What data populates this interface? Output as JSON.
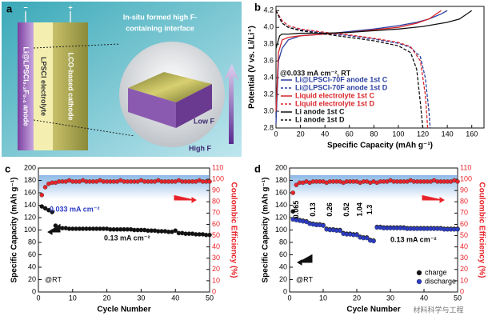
{
  "schematic": {
    "panel": "a",
    "minus": "−",
    "plus": "+",
    "anode": "Li@LPSCl₀.₃F₀.₄ anode",
    "electrolyte": "LPSCl electrolyte",
    "cathode": "LCO-based cathode",
    "interface": [
      "In-situ formed high F-",
      "containing interface"
    ],
    "low": "Low F",
    "high": "High F"
  },
  "watermark": "材料科学与工程",
  "chart_data": [
    {
      "type": "line",
      "panel": "b",
      "xlabel": "Specific Capacity (mAh g⁻¹)",
      "ylabel": "Potential (V vs. Li/Li⁺)",
      "annotations": [
        "@0.033 mA cm⁻², RT"
      ],
      "xlim": [
        0,
        170
      ],
      "xticks": [
        0,
        20,
        40,
        60,
        80,
        100,
        120,
        140,
        160
      ],
      "ylim": [
        2.8,
        4.25
      ],
      "yticks": [
        2.8,
        {
          "value": 3,
          "label": "3.0"
        },
        3.2,
        3.4,
        3.6,
        3.8,
        {
          "value": 4,
          "label": "4.0"
        },
        4.2
      ],
      "legend": "lower left",
      "series": [
        {
          "name": "Li@LPSCl-70F anode 1st C",
          "color": "#2a3fa0",
          "linestyle": "solid",
          "x": [
            0,
            2,
            5,
            10,
            20,
            40,
            60,
            80,
            100,
            115,
            125,
            135,
            140
          ],
          "values": [
            2.85,
            3.6,
            3.75,
            3.85,
            3.9,
            3.92,
            3.95,
            3.98,
            4.02,
            4.06,
            4.1,
            4.16,
            4.2
          ]
        },
        {
          "name": "Li@LPSCl-70F anode 1st D",
          "color": "#2a3fa0",
          "linestyle": "dashed",
          "x": [
            0,
            5,
            10,
            20,
            40,
            60,
            80,
            100,
            110,
            118,
            122,
            125,
            126
          ],
          "values": [
            4.2,
            4.05,
            4.0,
            3.97,
            3.93,
            3.9,
            3.86,
            3.81,
            3.76,
            3.65,
            3.4,
            3.0,
            2.8
          ]
        },
        {
          "name": "Liquid electrolyte 1st C",
          "color": "#d9262b",
          "linestyle": "solid",
          "x": [
            0,
            2,
            5,
            10,
            20,
            40,
            60,
            80,
            100,
            115,
            125,
            130,
            135
          ],
          "values": [
            3.0,
            3.7,
            3.85,
            3.88,
            3.9,
            3.92,
            3.94,
            3.97,
            4.0,
            4.05,
            4.1,
            4.15,
            4.2
          ]
        },
        {
          "name": "Liquid electrolyte 1st D",
          "color": "#d9262b",
          "linestyle": "dashed",
          "x": [
            0,
            5,
            10,
            20,
            40,
            60,
            80,
            100,
            110,
            118,
            122,
            124
          ],
          "values": [
            4.2,
            4.08,
            4.02,
            3.98,
            3.94,
            3.91,
            3.87,
            3.82,
            3.77,
            3.6,
            3.2,
            2.8
          ]
        },
        {
          "name": "Li anode 1st C",
          "color": "#111111",
          "linestyle": "solid",
          "x": [
            0,
            3,
            5,
            10,
            20,
            40,
            60,
            80,
            100,
            120,
            140,
            150,
            155,
            160
          ],
          "values": [
            3.75,
            3.9,
            3.92,
            3.92,
            3.93,
            3.93,
            3.94,
            3.96,
            3.98,
            4.01,
            4.06,
            4.1,
            4.15,
            4.2
          ]
        },
        {
          "name": "Li anode 1st D",
          "color": "#111111",
          "linestyle": "dashed",
          "x": [
            0,
            5,
            10,
            20,
            40,
            60,
            80,
            100,
            110,
            115,
            118,
            120
          ],
          "values": [
            4.2,
            4.05,
            4.0,
            3.96,
            3.92,
            3.88,
            3.84,
            3.78,
            3.7,
            3.5,
            3.1,
            2.8
          ]
        }
      ]
    },
    {
      "type": "scatter",
      "panel": "c",
      "xlabel": "Cycle Number",
      "ylabel": "Specific Capacity (mAh g⁻¹)",
      "y2label": "Coulombic Efficiency (%)",
      "annotations": [
        "0.033 mA cm⁻²",
        "0.13 mA cm⁻²",
        "@RT"
      ],
      "xlim": [
        0,
        50
      ],
      "xticks": [
        0,
        10,
        20,
        30,
        40,
        50
      ],
      "ylim": [
        0,
        200
      ],
      "yticks": [
        0,
        20,
        40,
        60,
        80,
        100,
        120,
        140,
        160,
        180,
        200
      ],
      "y2lim": [
        0,
        110
      ],
      "y2ticks": [
        0,
        10,
        20,
        30,
        40,
        50,
        60,
        70,
        80,
        90,
        100,
        110
      ],
      "x": [
        1,
        2,
        3,
        4,
        5,
        6,
        7,
        8,
        9,
        10,
        11,
        12,
        13,
        14,
        15,
        16,
        17,
        18,
        19,
        20,
        21,
        22,
        23,
        24,
        25,
        26,
        27,
        28,
        29,
        30,
        31,
        32,
        33,
        34,
        35,
        36,
        37,
        38,
        39,
        40,
        41,
        42,
        43,
        44,
        45,
        46,
        47,
        48,
        49,
        50
      ],
      "series": [
        {
          "color": "#111111",
          "values": [
            138,
            135,
            132,
            129,
            107,
            104,
            103,
            103,
            102,
            102,
            102,
            102,
            102,
            102,
            102,
            102,
            102,
            102,
            102,
            102,
            101,
            101,
            101,
            101,
            101,
            101,
            101,
            100,
            100,
            100,
            100,
            99,
            99,
            99,
            98,
            98,
            98,
            97,
            97,
            99,
            95,
            95,
            94,
            94,
            94,
            93,
            93,
            93,
            92,
            92
          ]
        },
        {
          "color": "#e8242b",
          "axis": "y2",
          "values": [
            86,
            93,
            96,
            97,
            97,
            98,
            98,
            98,
            99,
            98,
            98,
            98,
            99,
            98,
            98,
            98,
            98,
            99,
            98,
            98,
            98,
            98,
            98,
            99,
            98,
            98,
            98,
            98,
            98,
            99,
            98,
            98,
            98,
            98,
            99,
            98,
            98,
            98,
            98,
            98,
            99,
            98,
            98,
            98,
            98,
            98,
            99,
            98,
            98,
            98
          ]
        }
      ]
    },
    {
      "type": "scatter",
      "panel": "d",
      "xlabel": "Cycle Number",
      "ylabel": "Specific Capacity (mAh g⁻¹)",
      "y2label": "Coulombic Efficiency (%)",
      "annotations": [
        "0.065",
        "0.13",
        "0.26",
        "0.52",
        "1.04",
        "1.3",
        "0.13 mA cm⁻²",
        "@RT"
      ],
      "xlim": [
        0,
        50
      ],
      "xticks": [
        0,
        10,
        20,
        30,
        40,
        50
      ],
      "ylim": [
        0,
        200
      ],
      "yticks": [
        0,
        20,
        40,
        60,
        80,
        100,
        120,
        140,
        160,
        180,
        200
      ],
      "y2lim": [
        0,
        110
      ],
      "y2ticks": [
        0,
        10,
        20,
        30,
        40,
        50,
        60,
        70,
        80,
        90,
        100,
        110
      ],
      "legend": "lower right",
      "x": [
        1,
        2,
        3,
        4,
        5,
        6,
        7,
        8,
        9,
        10,
        11,
        12,
        13,
        14,
        15,
        16,
        17,
        18,
        19,
        20,
        21,
        22,
        23,
        24,
        25,
        26,
        27,
        28,
        29,
        30,
        31,
        32,
        33,
        34,
        35,
        36,
        37,
        38,
        39,
        40,
        41,
        42,
        43,
        44,
        45,
        46,
        47,
        48,
        49,
        50
      ],
      "series": [
        {
          "name": "charge",
          "color": "#111111",
          "values": [
            130,
            118,
            116,
            115,
            114,
            111,
            110,
            109,
            109,
            108,
            102,
            101,
            101,
            100,
            100,
            95,
            94,
            94,
            93,
            93,
            89,
            88,
            88,
            84,
            83,
            105,
            105,
            104,
            104,
            104,
            104,
            104,
            104,
            104,
            103,
            103,
            103,
            103,
            103,
            103,
            103,
            103,
            103,
            103,
            103,
            102,
            102,
            102,
            102,
            102
          ]
        },
        {
          "name": "discharge",
          "color": "#2b3bc4",
          "values": [
            117,
            116,
            115,
            114,
            113,
            110,
            109,
            108,
            108,
            107,
            101,
            100,
            100,
            99,
            99,
            94,
            93,
            93,
            92,
            92,
            88,
            87,
            87,
            83,
            82,
            104,
            104,
            103,
            103,
            103,
            103,
            103,
            103,
            103,
            102,
            102,
            102,
            102,
            102,
            102,
            102,
            102,
            102,
            102,
            102,
            101,
            101,
            101,
            101,
            101
          ]
        },
        {
          "color": "#e8242b",
          "axis": "y2",
          "values": [
            88,
            95,
            97,
            97,
            98,
            97,
            98,
            98,
            98,
            98,
            97,
            98,
            98,
            98,
            98,
            97,
            98,
            98,
            98,
            98,
            97,
            98,
            98,
            97,
            98,
            97,
            98,
            98,
            98,
            99,
            98,
            98,
            98,
            98,
            98,
            99,
            98,
            98,
            98,
            98,
            98,
            98,
            99,
            98,
            98,
            98,
            98,
            98,
            99,
            98
          ]
        }
      ]
    }
  ]
}
